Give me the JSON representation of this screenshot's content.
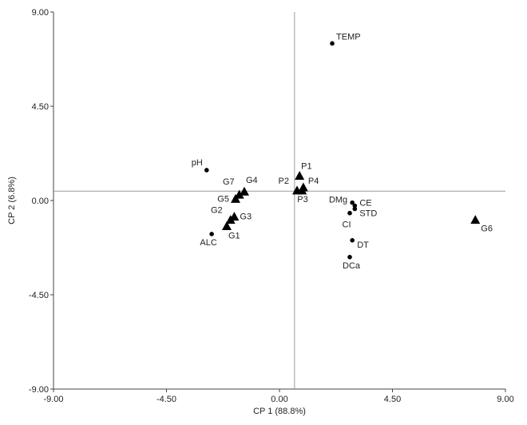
{
  "chart_data": {
    "type": "scatter",
    "xlabel": "CP 1 (88.8%)",
    "ylabel": "CP 2 (6.8%)",
    "xlim": [
      -9.0,
      9.0
    ],
    "ylim": [
      -9.0,
      9.0
    ],
    "xticks": [
      "-9.00",
      "-4.50",
      "0.00",
      "4.50",
      "9.00"
    ],
    "yticks": [
      "9.00",
      "4.50",
      "0.00",
      "-4.50",
      "-9.00"
    ],
    "xtick_values": [
      -9.0,
      -4.5,
      0.0,
      4.5,
      9.0
    ],
    "ytick_values": [
      9.0,
      4.5,
      0.0,
      -4.5,
      -9.0
    ],
    "reference_lines": {
      "x": 0.6,
      "y": 0.45
    },
    "grid": false,
    "series": [
      {
        "marker": "circle",
        "points": [
          {
            "label": "TEMP",
            "x": 2.1,
            "y": 7.5
          },
          {
            "label": "pH",
            "x": -2.9,
            "y": 1.45
          },
          {
            "label": "ALC",
            "x": -2.7,
            "y": -1.6
          },
          {
            "label": "DMg",
            "x": 2.9,
            "y": -0.1
          },
          {
            "label": "CE",
            "x": 3.0,
            "y": -0.25
          },
          {
            "label": "STD",
            "x": 3.0,
            "y": -0.4
          },
          {
            "label": "CI",
            "x": 2.8,
            "y": -0.6
          },
          {
            "label": "DT",
            "x": 2.9,
            "y": -1.9
          },
          {
            "label": "DCa",
            "x": 2.8,
            "y": -2.7
          }
        ]
      },
      {
        "marker": "triangle",
        "points": [
          {
            "label": "P1",
            "x": 0.8,
            "y": 1.2
          },
          {
            "label": "P2",
            "x": 0.7,
            "y": 0.5
          },
          {
            "label": "P3",
            "x": 0.9,
            "y": 0.5
          },
          {
            "label": "P4",
            "x": 0.95,
            "y": 0.65
          },
          {
            "label": "G1",
            "x": -2.1,
            "y": -1.2
          },
          {
            "label": "G2",
            "x": -1.95,
            "y": -0.9
          },
          {
            "label": "G3",
            "x": -1.8,
            "y": -0.75
          },
          {
            "label": "G4",
            "x": -1.4,
            "y": 0.45
          },
          {
            "label": "G5",
            "x": -1.75,
            "y": 0.1
          },
          {
            "label": "G6",
            "x": 7.8,
            "y": -0.9
          },
          {
            "label": "G7",
            "x": -1.6,
            "y": 0.3
          }
        ]
      }
    ]
  }
}
